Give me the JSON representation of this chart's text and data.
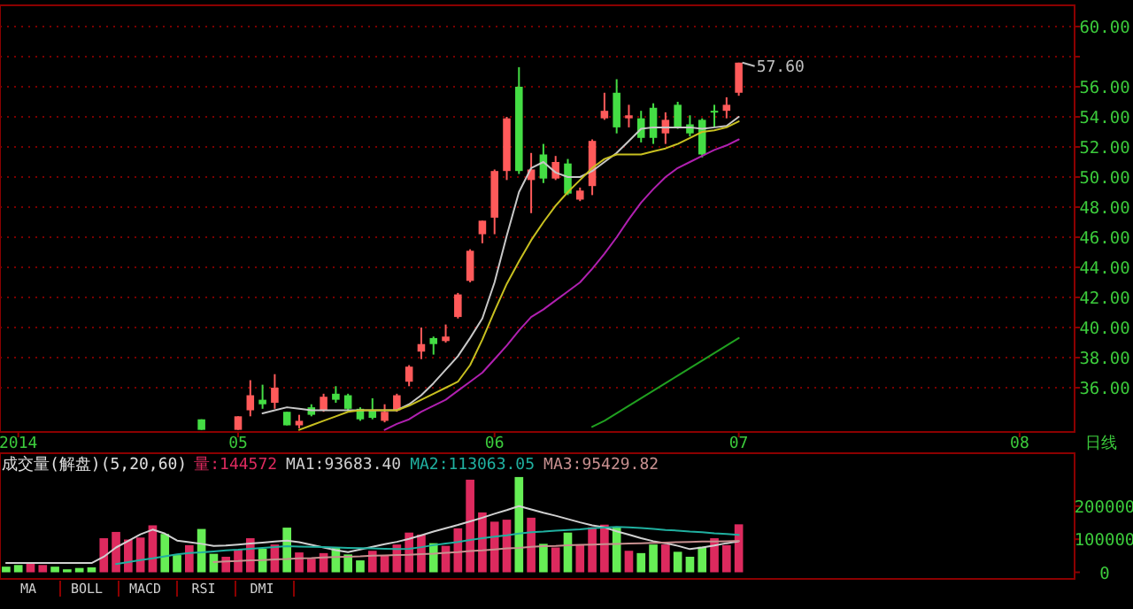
{
  "chart_data": [
    {
      "type": "candlestick",
      "categories": [
        null,
        "2014",
        null,
        null,
        null,
        null,
        null,
        null,
        null,
        null,
        null,
        null,
        null,
        null,
        null,
        null,
        null,
        null,
        null,
        "05",
        null,
        null,
        null,
        null,
        null,
        null,
        null,
        null,
        null,
        null,
        null,
        null,
        null,
        null,
        null,
        null,
        null,
        null,
        null,
        null,
        "06",
        null,
        null,
        null,
        null,
        null,
        null,
        null,
        null,
        null,
        null,
        null,
        null,
        null,
        null,
        null,
        null,
        null,
        null,
        null,
        "07",
        null,
        null,
        null,
        null,
        null,
        null,
        null,
        null,
        null,
        null,
        null,
        null,
        null,
        null,
        null,
        null,
        null,
        null,
        null,
        null,
        null,
        null,
        "08",
        null,
        null,
        null,
        null
      ],
      "ohlc": [
        null,
        null,
        null,
        null,
        null,
        null,
        null,
        null,
        null,
        null,
        null,
        null,
        null,
        null,
        null,
        null,
        [
          33.9,
          33.9,
          33.2,
          33.2
        ],
        null,
        null,
        [
          33.2,
          34.1,
          33.2,
          34.1
        ],
        [
          34.5,
          36.5,
          34.1,
          35.5
        ],
        [
          35.2,
          36.2,
          34.6,
          34.9
        ],
        [
          35.0,
          36.9,
          34.6,
          36.0
        ],
        [
          34.4,
          34.4,
          33.5,
          33.5
        ],
        [
          33.5,
          34.2,
          33.3,
          33.8
        ],
        [
          34.7,
          34.9,
          34.1,
          34.2
        ],
        [
          34.5,
          35.6,
          34.4,
          35.4
        ],
        [
          35.6,
          36.1,
          35.0,
          35.2
        ],
        [
          35.5,
          35.6,
          34.4,
          34.6
        ],
        [
          34.6,
          34.7,
          33.8,
          33.9
        ],
        [
          34.5,
          35.3,
          33.9,
          34.0
        ],
        [
          33.8,
          34.9,
          33.7,
          34.4
        ],
        [
          34.5,
          35.6,
          34.4,
          35.5
        ],
        [
          36.4,
          37.5,
          36.1,
          37.4
        ],
        [
          38.4,
          40.0,
          37.9,
          38.9
        ],
        [
          39.3,
          39.4,
          38.2,
          38.9
        ],
        [
          39.1,
          40.2,
          39.0,
          39.4
        ],
        [
          40.7,
          42.3,
          40.6,
          42.2
        ],
        [
          43.1,
          45.2,
          43.0,
          45.1
        ],
        [
          46.2,
          47.1,
          45.6,
          47.1
        ],
        [
          47.3,
          50.5,
          46.2,
          50.4
        ],
        [
          50.4,
          54.0,
          49.8,
          53.9
        ],
        [
          56.0,
          57.3,
          50.2,
          50.4
        ],
        [
          49.8,
          51.6,
          47.6,
          50.5
        ],
        [
          51.5,
          52.2,
          49.6,
          49.9
        ],
        [
          49.9,
          51.4,
          49.8,
          51.0
        ],
        [
          50.9,
          51.2,
          48.8,
          48.9
        ],
        [
          48.5,
          49.3,
          48.4,
          49.1
        ],
        [
          49.4,
          52.5,
          48.8,
          52.4
        ],
        [
          53.9,
          55.6,
          53.8,
          54.4
        ],
        [
          55.6,
          56.5,
          52.9,
          53.3
        ],
        [
          53.9,
          54.8,
          53.3,
          54.1
        ],
        [
          53.9,
          54.4,
          52.3,
          52.6
        ],
        [
          54.6,
          54.9,
          52.2,
          52.6
        ],
        [
          52.9,
          54.3,
          52.2,
          53.8
        ],
        [
          54.8,
          55.0,
          53.2,
          53.3
        ],
        [
          53.5,
          54.1,
          52.7,
          52.9
        ],
        [
          53.8,
          53.9,
          51.3,
          51.5
        ],
        [
          54.4,
          54.8,
          53.3,
          54.3
        ],
        [
          54.4,
          55.3,
          53.9,
          54.8
        ],
        [
          55.6,
          57.6,
          55.4,
          57.6
        ],
        null,
        null,
        null,
        null,
        null,
        null,
        null,
        null,
        null,
        null,
        null,
        null,
        null,
        null,
        null,
        null,
        null,
        null,
        null,
        null,
        null,
        null,
        null,
        null,
        null,
        null,
        null
      ],
      "colors": [
        null,
        null,
        null,
        null,
        null,
        null,
        null,
        null,
        null,
        null,
        null,
        null,
        null,
        null,
        null,
        null,
        "#44dd44",
        null,
        null,
        "#ff5a5a",
        "#ff5a5a",
        "#44dd44",
        "#ff5a5a",
        "#44dd44",
        "#ff5a5a",
        "#44dd44",
        "#ff5a5a",
        "#44dd44",
        "#44dd44",
        "#44dd44",
        "#44dd44",
        "#ff5a5a",
        "#ff5a5a",
        "#ff5a5a",
        "#ff5a5a",
        "#44dd44",
        "#ff5a5a",
        "#ff5a5a",
        "#ff5a5a",
        "#ff5a5a",
        "#ff5a5a",
        "#ff5a5a",
        "#44dd44",
        "#ff5a5a",
        "#44dd44",
        "#ff5a5a",
        "#44dd44",
        "#ff5a5a",
        "#ff5a5a",
        "#ff5a5a",
        "#44dd44",
        "#ff5a5a",
        "#44dd44",
        "#44dd44",
        "#ff5a5a",
        "#44dd44",
        "#44dd44",
        "#44dd44",
        "#44dd44",
        "#ff5a5a",
        "#ff5a5a",
        null,
        null,
        null,
        null,
        null,
        null,
        null,
        null,
        null,
        null,
        null,
        null,
        null,
        null,
        null,
        null,
        null,
        null,
        null,
        null,
        null,
        null,
        null,
        null,
        null,
        null,
        null
      ],
      "series": [
        {
          "type": "line",
          "color": "#c8c8c8",
          "values": [
            null,
            null,
            null,
            null,
            null,
            null,
            null,
            null,
            null,
            null,
            null,
            null,
            null,
            null,
            null,
            null,
            null,
            null,
            null,
            null,
            null,
            34.3,
            34.5,
            34.7,
            34.6,
            34.5,
            34.5,
            34.5,
            34.5,
            34.5,
            34.5,
            34.5,
            34.5,
            34.9,
            35.5,
            36.3,
            37.2,
            38.1,
            39.3,
            40.6,
            43.0,
            46.1,
            49.0,
            50.6,
            51.0,
            50.3,
            50.0,
            50.0,
            50.4,
            51.0,
            51.6,
            52.4,
            53.2,
            53.3,
            53.3,
            53.3,
            53.3,
            53.2,
            53.3,
            53.4,
            54.0,
            null,
            null,
            null,
            null,
            null,
            null,
            null,
            null,
            null,
            null,
            null,
            null,
            null,
            null,
            null,
            null,
            null,
            null,
            null,
            null,
            null,
            null,
            null,
            null,
            null,
            null,
            null
          ]
        },
        {
          "type": "line",
          "color": "#c8c020",
          "values": [
            null,
            null,
            null,
            null,
            null,
            null,
            null,
            null,
            null,
            null,
            null,
            null,
            null,
            null,
            null,
            null,
            null,
            null,
            null,
            null,
            null,
            null,
            null,
            null,
            33.2,
            33.5,
            33.8,
            34.1,
            34.4,
            34.5,
            34.5,
            34.5,
            34.5,
            34.8,
            35.2,
            35.6,
            36.0,
            36.4,
            37.5,
            39.2,
            41.1,
            42.9,
            44.4,
            45.8,
            47.0,
            48.1,
            49.0,
            49.8,
            50.6,
            51.2,
            51.5,
            51.5,
            51.5,
            51.7,
            51.9,
            52.2,
            52.6,
            53.0,
            53.1,
            53.3,
            53.7,
            null,
            null,
            null,
            null,
            null,
            null,
            null,
            null,
            null,
            null,
            null,
            null,
            null,
            null,
            null,
            null,
            null,
            null,
            null,
            null,
            null,
            null,
            null,
            null,
            null,
            null,
            null
          ]
        },
        {
          "type": "line",
          "color": "#b020b0",
          "values": [
            null,
            null,
            null,
            null,
            null,
            null,
            null,
            null,
            null,
            null,
            null,
            null,
            null,
            null,
            null,
            null,
            null,
            null,
            null,
            null,
            null,
            null,
            null,
            null,
            null,
            null,
            null,
            null,
            null,
            null,
            null,
            33.2,
            33.6,
            33.9,
            34.4,
            34.8,
            35.2,
            35.8,
            36.4,
            37.0,
            37.9,
            38.8,
            39.8,
            40.7,
            41.2,
            41.8,
            42.4,
            43.0,
            43.9,
            44.9,
            46.0,
            47.2,
            48.3,
            49.2,
            50.0,
            50.6,
            51.0,
            51.4,
            51.8,
            52.1,
            52.5,
            null,
            null,
            null,
            null,
            null,
            null,
            null,
            null,
            null,
            null,
            null,
            null,
            null,
            null,
            null,
            null,
            null,
            null,
            null,
            null,
            null,
            null,
            null,
            null,
            null,
            null,
            null
          ]
        },
        {
          "type": "line",
          "color": "#20a020",
          "values": [
            null,
            null,
            null,
            null,
            null,
            null,
            null,
            null,
            null,
            null,
            null,
            null,
            null,
            null,
            null,
            null,
            null,
            null,
            null,
            null,
            null,
            null,
            null,
            null,
            null,
            null,
            null,
            null,
            null,
            null,
            null,
            null,
            null,
            null,
            null,
            null,
            null,
            null,
            null,
            null,
            null,
            null,
            null,
            null,
            null,
            null,
            null,
            null,
            33.4,
            33.8,
            34.3,
            34.8,
            35.3,
            35.8,
            36.3,
            36.8,
            37.3,
            37.8,
            38.3,
            38.8,
            39.3,
            null,
            null,
            null,
            null,
            null,
            null,
            null,
            null,
            null,
            null,
            null,
            null,
            null,
            null,
            null,
            null,
            null,
            null,
            null,
            null,
            null,
            null,
            null,
            null,
            null,
            null,
            null
          ]
        }
      ],
      "ylim": [
        33.06,
        61.41
      ],
      "yticks": [
        {
          "value": 36,
          "label": "36.00"
        },
        {
          "value": 38,
          "label": "38.00"
        },
        {
          "value": 40,
          "label": "40.00"
        },
        {
          "value": 42,
          "label": "42.00"
        },
        {
          "value": 44,
          "label": "44.00"
        },
        {
          "value": 46,
          "label": "46.00"
        },
        {
          "value": 48,
          "label": "48.00"
        },
        {
          "value": 50,
          "label": "50.00"
        },
        {
          "value": 52,
          "label": "52.00"
        },
        {
          "value": 54,
          "label": "54.00"
        },
        {
          "value": 56,
          "label": "56.00"
        },
        {
          "value": 58,
          "label": null
        },
        {
          "value": 60,
          "label": "60.00"
        }
      ],
      "grid": "y",
      "annotations": [
        "57.60",
        "日线"
      ]
    },
    {
      "type": "bar",
      "title": "成交量(解盘)(5,20,60)",
      "categories": [
        null,
        null,
        null,
        null,
        null,
        null,
        null,
        null,
        null,
        null,
        null,
        null,
        null,
        null,
        null,
        null,
        null,
        null,
        null,
        null,
        null,
        null,
        null,
        null,
        null,
        null,
        null,
        null,
        null,
        null,
        null,
        null,
        null,
        null,
        null,
        null,
        null,
        null,
        null,
        null,
        null,
        null,
        null,
        null,
        null,
        null,
        null,
        null,
        null,
        null,
        null,
        null,
        null,
        null,
        null,
        null,
        null,
        null,
        null,
        null,
        null,
        null,
        null,
        null,
        null,
        null,
        null,
        null,
        null,
        null,
        null,
        null,
        null,
        null,
        null,
        null,
        null,
        null,
        null,
        null,
        null,
        null,
        null,
        null,
        null,
        null,
        null,
        null
      ],
      "series": [
        {
          "name": "量:144572",
          "values": [
            17000,
            22000,
            26000,
            22000,
            17000,
            9000,
            13000,
            15000,
            103000,
            122000,
            99000,
            105000,
            142000,
            116000,
            52000,
            82000,
            131000,
            56000,
            47000,
            69000,
            103000,
            71000,
            84000,
            135000,
            60000,
            41000,
            58000,
            75000,
            54000,
            36000,
            65000,
            51000,
            84000,
            120000,
            114000,
            88000,
            80000,
            133000,
            280000,
            181000,
            153000,
            159000,
            288000,
            165000,
            86000,
            75000,
            120000,
            82000,
            136000,
            144000,
            136000,
            65000,
            58000,
            84000,
            84000,
            62000,
            47000,
            77000,
            103000,
            82000,
            145000,
            null,
            null,
            null,
            null,
            null,
            null,
            null,
            null,
            null,
            null,
            null,
            null,
            null,
            null,
            null,
            null,
            null,
            null,
            null,
            null,
            null,
            null,
            null,
            null,
            null,
            null,
            null
          ],
          "colors": [
            "#66ee55",
            "#66ee55",
            "#dd2a5e",
            "#dd2a5e",
            "#66ee55",
            "#66ee55",
            "#66ee55",
            "#66ee55",
            "#dd2a5e",
            "#dd2a5e",
            "#dd2a5e",
            "#dd2a5e",
            "#dd2a5e",
            "#66ee55",
            "#66ee55",
            "#dd2a5e",
            "#66ee55",
            "#66ee55",
            "#dd2a5e",
            "#dd2a5e",
            "#dd2a5e",
            "#66ee55",
            "#dd2a5e",
            "#66ee55",
            "#dd2a5e",
            "#dd2a5e",
            "#dd2a5e",
            "#66ee55",
            "#66ee55",
            "#66ee55",
            "#dd2a5e",
            "#dd2a5e",
            "#dd2a5e",
            "#dd2a5e",
            "#dd2a5e",
            "#66ee55",
            "#dd2a5e",
            "#dd2a5e",
            "#dd2a5e",
            "#dd2a5e",
            "#dd2a5e",
            "#dd2a5e",
            "#66ee55",
            "#dd2a5e",
            "#66ee55",
            "#dd2a5e",
            "#66ee55",
            "#dd2a5e",
            "#dd2a5e",
            "#dd2a5e",
            "#66ee55",
            "#dd2a5e",
            "#66ee55",
            "#66ee55",
            "#dd2a5e",
            "#66ee55",
            "#66ee55",
            "#66ee55",
            "#dd2a5e",
            "#dd2a5e",
            "#dd2a5e",
            null,
            null,
            null,
            null,
            null,
            null,
            null,
            null,
            null,
            null,
            null,
            null,
            null,
            null,
            null,
            null,
            null,
            null,
            null,
            null,
            null,
            null,
            null,
            null,
            null,
            null,
            null
          ]
        },
        {
          "name": "MA1:93683.40",
          "type": "line",
          "color": "#d0d0d0",
          "values": [
            28000,
            28000,
            28000,
            28000,
            28000,
            28000,
            28000,
            28000,
            47000,
            75000,
            95000,
            115000,
            129000,
            117000,
            96000,
            91000,
            86000,
            80000,
            81000,
            84000,
            87000,
            90000,
            93000,
            96000,
            91000,
            83000,
            75000,
            67000,
            61000,
            69000,
            77000,
            85000,
            92000,
            101000,
            112000,
            123000,
            133000,
            143000,
            154000,
            165000,
            177000,
            188000,
            200000,
            190000,
            180000,
            171000,
            161000,
            151000,
            142000,
            136000,
            124000,
            114000,
            103000,
            94000,
            88000,
            80000,
            70000,
            75000,
            81000,
            88000,
            94000,
            null,
            null,
            null,
            null,
            null,
            null,
            null,
            null,
            null,
            null,
            null,
            null,
            null,
            null,
            null,
            null,
            null,
            null,
            null,
            null,
            null,
            null,
            null,
            null,
            null,
            null,
            null
          ]
        },
        {
          "name": "MA2:113063.05",
          "type": "line",
          "color": "#20b0a0",
          "values": [
            null,
            null,
            null,
            null,
            null,
            null,
            null,
            null,
            null,
            25000,
            31000,
            37000,
            42000,
            48000,
            54000,
            58000,
            60000,
            63000,
            66000,
            68000,
            71000,
            74000,
            76000,
            79000,
            78000,
            77000,
            76000,
            75000,
            74000,
            73000,
            72000,
            71000,
            70000,
            71000,
            76000,
            82000,
            87000,
            92000,
            98000,
            103000,
            108000,
            112000,
            117000,
            121000,
            123000,
            126000,
            128000,
            130000,
            133000,
            135000,
            137000,
            136000,
            134000,
            131000,
            128000,
            126000,
            123000,
            121000,
            118000,
            116000,
            113000,
            null,
            null,
            null,
            null,
            null,
            null,
            null,
            null,
            null,
            null,
            null,
            null,
            null,
            null,
            null,
            null,
            null,
            null,
            null,
            null,
            null,
            null,
            null,
            null,
            null,
            null,
            null
          ]
        },
        {
          "name": "MA3:95429.82",
          "type": "line",
          "color": "#c89090",
          "values": [
            null,
            null,
            null,
            null,
            null,
            null,
            null,
            null,
            null,
            null,
            null,
            null,
            null,
            null,
            null,
            null,
            null,
            31000,
            33000,
            34000,
            36000,
            37000,
            39000,
            40000,
            42000,
            43000,
            45000,
            46000,
            47000,
            48000,
            50000,
            51000,
            52000,
            53000,
            55000,
            56000,
            59000,
            61000,
            64000,
            66000,
            69000,
            72000,
            74000,
            77000,
            79000,
            80000,
            82000,
            83000,
            84000,
            85000,
            86000,
            87000,
            88000,
            89000,
            90000,
            91000,
            92000,
            93000,
            93000,
            94000,
            95000,
            null,
            null,
            null,
            null,
            null,
            null,
            null,
            null,
            null,
            null,
            null,
            null,
            null,
            null,
            null,
            null,
            null,
            null,
            null,
            null,
            null,
            null,
            null,
            null,
            null,
            null,
            null
          ]
        }
      ],
      "ylim": [
        -20000,
        360000
      ],
      "yticks": [
        0,
        100000,
        200000
      ],
      "tick_labels": "y",
      "legend": "top left",
      "annotations": [
        "MA",
        "BOLL",
        "MACD",
        "RSI",
        "DMI"
      ]
    }
  ]
}
